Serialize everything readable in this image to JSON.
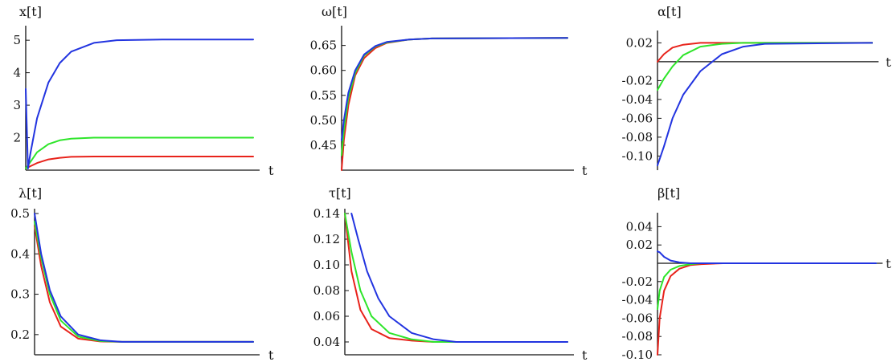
{
  "colors": {
    "red": "#e8231b",
    "green": "#2ee52a",
    "blue": "#2234e0",
    "axis": "#111111"
  },
  "chart_data": [
    {
      "type": "line",
      "title": "",
      "ylabel": "x[t]",
      "xlabel": "t",
      "ylim": [
        1.0,
        5.3
      ],
      "xlim": [
        0,
        10
      ],
      "ytick_values": [
        2,
        3,
        4,
        5
      ],
      "yticks": [
        "2",
        "3",
        "4",
        "5"
      ],
      "grid": false,
      "series": [
        {
          "color": "red",
          "x": [
            0,
            0.2,
            0.5,
            1,
            1.5,
            2,
            3,
            4,
            6,
            10
          ],
          "y": [
            1.05,
            1.12,
            1.22,
            1.33,
            1.38,
            1.41,
            1.42,
            1.42,
            1.42,
            1.42
          ]
        },
        {
          "color": "green",
          "x": [
            0,
            0.2,
            0.5,
            1,
            1.5,
            2,
            3,
            4,
            6,
            10
          ],
          "y": [
            1.05,
            1.25,
            1.55,
            1.8,
            1.92,
            1.97,
            2.0,
            2.0,
            2.0,
            2.0
          ]
        },
        {
          "color": "blue",
          "x": [
            0,
            0.1,
            0.2,
            0.5,
            1,
            1.5,
            2,
            3,
            4,
            6,
            10
          ],
          "y": [
            3.5,
            1.05,
            1.5,
            2.6,
            3.7,
            4.3,
            4.65,
            4.92,
            5.0,
            5.02,
            5.02
          ]
        }
      ]
    },
    {
      "type": "line",
      "title": "",
      "ylabel": "ω[t]",
      "xlabel": "t",
      "ylim": [
        0.4,
        0.68
      ],
      "xlim": [
        0,
        10
      ],
      "ytick_values": [
        0.45,
        0.5,
        0.55,
        0.6,
        0.65
      ],
      "yticks": [
        "0.45",
        "0.50",
        "0.55",
        "0.60",
        "0.65"
      ],
      "grid": false,
      "series": [
        {
          "color": "red",
          "x": [
            0,
            0.1,
            0.3,
            0.6,
            1,
            1.5,
            2,
            3,
            4,
            10
          ],
          "y": [
            0.4,
            0.46,
            0.53,
            0.59,
            0.625,
            0.645,
            0.655,
            0.662,
            0.664,
            0.665
          ]
        },
        {
          "color": "green",
          "x": [
            0,
            0.1,
            0.3,
            0.6,
            1,
            1.5,
            2,
            3,
            4,
            10
          ],
          "y": [
            0.43,
            0.48,
            0.545,
            0.595,
            0.63,
            0.648,
            0.656,
            0.662,
            0.664,
            0.665
          ]
        },
        {
          "color": "blue",
          "x": [
            0,
            0.1,
            0.3,
            0.6,
            1,
            1.5,
            2,
            3,
            4,
            10
          ],
          "y": [
            0.46,
            0.5,
            0.555,
            0.6,
            0.632,
            0.649,
            0.657,
            0.662,
            0.664,
            0.665
          ]
        }
      ]
    },
    {
      "type": "line",
      "title": "",
      "ylabel": "α[t]",
      "xlabel": "t",
      "ylim": [
        -0.115,
        0.028
      ],
      "xlim": [
        0,
        10
      ],
      "ytick_values": [
        0.02,
        -0.02,
        -0.04,
        -0.06,
        -0.08,
        -0.1
      ],
      "yticks": [
        "0.02",
        "-0.02",
        "-0.04",
        "-0.06",
        "-0.08",
        "-0.10"
      ],
      "grid": false,
      "series": [
        {
          "color": "red",
          "x": [
            0,
            0.3,
            0.7,
            1.2,
            2,
            3,
            10
          ],
          "y": [
            0.0,
            0.008,
            0.015,
            0.018,
            0.02,
            0.02,
            0.02
          ]
        },
        {
          "color": "green",
          "x": [
            0,
            0.3,
            0.7,
            1.2,
            2,
            3,
            4,
            10
          ],
          "y": [
            -0.03,
            -0.018,
            -0.005,
            0.007,
            0.016,
            0.019,
            0.02,
            0.02
          ]
        },
        {
          "color": "blue",
          "x": [
            0,
            0.3,
            0.7,
            1.2,
            2,
            3,
            4,
            5,
            10
          ],
          "y": [
            -0.11,
            -0.09,
            -0.06,
            -0.035,
            -0.01,
            0.008,
            0.016,
            0.019,
            0.02
          ]
        }
      ]
    },
    {
      "type": "line",
      "title": "",
      "ylabel": "λ[t]",
      "xlabel": "t",
      "ylim": [
        0.15,
        0.5
      ],
      "xlim": [
        0,
        10
      ],
      "ytick_values": [
        0.2,
        0.3,
        0.4,
        0.5
      ],
      "yticks": [
        "0.2",
        "0.3",
        "0.4",
        "0.5"
      ],
      "grid": false,
      "series": [
        {
          "color": "red",
          "x": [
            0,
            0.3,
            0.7,
            1.2,
            2,
            3,
            4,
            10
          ],
          "y": [
            0.47,
            0.37,
            0.28,
            0.22,
            0.19,
            0.183,
            0.182,
            0.182
          ]
        },
        {
          "color": "green",
          "x": [
            0,
            0.3,
            0.7,
            1.2,
            2,
            3,
            4,
            10
          ],
          "y": [
            0.48,
            0.39,
            0.3,
            0.235,
            0.195,
            0.184,
            0.182,
            0.182
          ]
        },
        {
          "color": "blue",
          "x": [
            0,
            0.3,
            0.7,
            1.2,
            2,
            3,
            4,
            10
          ],
          "y": [
            0.5,
            0.4,
            0.31,
            0.245,
            0.2,
            0.186,
            0.182,
            0.182
          ]
        }
      ]
    },
    {
      "type": "line",
      "title": "",
      "ylabel": "τ[t]",
      "xlabel": "t",
      "ylim": [
        0.03,
        0.14
      ],
      "xlim": [
        0,
        10
      ],
      "ytick_values": [
        0.04,
        0.06,
        0.08,
        0.1,
        0.12,
        0.14
      ],
      "yticks": [
        "0.04",
        "0.06",
        "0.08",
        "0.10",
        "0.12",
        "0.14"
      ],
      "grid": false,
      "series": [
        {
          "color": "red",
          "x": [
            0,
            0.3,
            0.7,
            1.2,
            2,
            3,
            4,
            10
          ],
          "y": [
            0.14,
            0.095,
            0.065,
            0.05,
            0.043,
            0.041,
            0.04,
            0.04
          ]
        },
        {
          "color": "green",
          "x": [
            0,
            0.3,
            0.7,
            1.2,
            2,
            3,
            4,
            10
          ],
          "y": [
            0.14,
            0.11,
            0.08,
            0.06,
            0.047,
            0.042,
            0.04,
            0.04
          ]
        },
        {
          "color": "blue",
          "x": [
            0.3,
            0.6,
            1.0,
            1.5,
            2,
            3,
            4,
            5,
            10
          ],
          "y": [
            0.14,
            0.12,
            0.095,
            0.074,
            0.06,
            0.047,
            0.042,
            0.04,
            0.04
          ]
        }
      ]
    },
    {
      "type": "line",
      "title": "",
      "ylabel": "β[t]",
      "xlabel": "t",
      "ylim": [
        -0.1,
        0.05
      ],
      "xlim": [
        0,
        10
      ],
      "ytick_values": [
        0.04,
        0.02,
        -0.02,
        -0.04,
        -0.06,
        -0.08,
        -0.1
      ],
      "yticks": [
        "0.04",
        "0.02",
        "-0.02",
        "-0.04",
        "-0.06",
        "-0.08",
        "-0.10"
      ],
      "grid": false,
      "series": [
        {
          "color": "red",
          "x": [
            0,
            0.1,
            0.3,
            0.6,
            1,
            1.5,
            2,
            3,
            10
          ],
          "y": [
            -0.1,
            -0.06,
            -0.03,
            -0.014,
            -0.006,
            -0.002,
            -0.001,
            0,
            0
          ]
        },
        {
          "color": "green",
          "x": [
            0,
            0.1,
            0.3,
            0.6,
            1,
            1.5,
            2,
            3,
            10
          ],
          "y": [
            -0.05,
            -0.03,
            -0.015,
            -0.007,
            -0.003,
            -0.001,
            0,
            0,
            0
          ]
        },
        {
          "color": "blue",
          "x": [
            0,
            0.1,
            0.3,
            0.6,
            1,
            1.5,
            2,
            10
          ],
          "y": [
            0.013,
            0.012,
            0.007,
            0.003,
            0.001,
            0.0,
            0,
            0
          ]
        }
      ]
    }
  ]
}
